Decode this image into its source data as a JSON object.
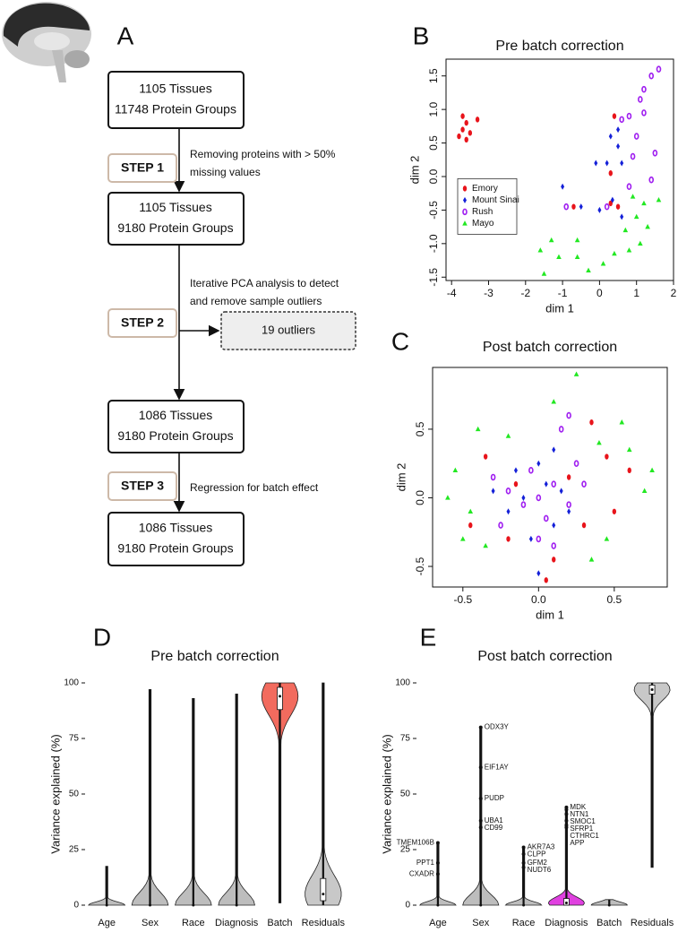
{
  "panel_labels": [
    "A",
    "B",
    "C",
    "D",
    "E"
  ],
  "flowchart": {
    "boxes": [
      [
        "1105 Tissues",
        "11748  Protein Groups"
      ],
      [
        "1105 Tissues",
        "9180 Protein Groups"
      ],
      [
        "1086 Tissues",
        "9180 Protein Groups"
      ],
      [
        "1086 Tissues",
        "9180 Protein Groups"
      ]
    ],
    "steps": [
      "STEP 1",
      "STEP 2",
      "STEP 3"
    ],
    "notes": [
      [
        "Removing proteins with > 50%",
        "missing values"
      ],
      [
        "Iterative PCA analysis to detect",
        "and remove sample outliers"
      ],
      [
        "Regression for batch effect"
      ]
    ],
    "outliers": "19 outliers"
  },
  "chart_data": [
    {
      "type": "scatter",
      "title": "Pre batch correction",
      "x_label": "dim 1",
      "y_label": "dim 2",
      "xlim": [
        -4.15,
        2.0
      ],
      "ylim": [
        -1.55,
        1.75
      ],
      "xticks": [
        -4,
        -3,
        -2,
        -1,
        0,
        1,
        2
      ],
      "yticks": [
        -1.5,
        {
          "value": -1,
          "label": "-1.0"
        },
        -0.5,
        {
          "value": 0,
          "label": "0.0"
        },
        0.5,
        {
          "value": 1,
          "label": "1.0"
        },
        1.5
      ],
      "legend": "center left",
      "series": [
        {
          "name": "Emory",
          "color": "#e8141b",
          "marker": "ellipse",
          "x": [
            -3.7,
            -3.6,
            -3.3,
            -3.8,
            -3.6,
            -3.5,
            -3.7,
            0.4,
            0.3,
            0.3,
            -0.7,
            0.5
          ],
          "values": [
            0.9,
            0.8,
            0.85,
            0.6,
            0.55,
            0.65,
            0.7,
            0.9,
            0.05,
            -0.4,
            -0.45,
            -0.45
          ]
        },
        {
          "name": "Mount Sinai",
          "color": "#1420d8",
          "marker": "diamond",
          "x": [
            0.5,
            0.3,
            0.2,
            0.6,
            -0.1,
            -1.0,
            0.0,
            0.35,
            0.6,
            -0.5,
            0.5
          ],
          "values": [
            0.7,
            0.6,
            0.2,
            0.2,
            0.2,
            -0.15,
            -0.5,
            -0.35,
            -0.6,
            -0.45,
            0.45
          ]
        },
        {
          "name": "Rush",
          "color": "#a020f0",
          "marker": "open-circle",
          "x": [
            1.6,
            1.4,
            1.2,
            1.1,
            0.8,
            1.2,
            0.6,
            1.0,
            1.5,
            0.9,
            -0.9,
            0.8,
            0.2,
            1.4
          ],
          "values": [
            1.6,
            1.5,
            1.3,
            1.15,
            0.9,
            0.95,
            0.85,
            0.6,
            0.35,
            0.3,
            -0.45,
            -0.15,
            -0.45,
            -0.05
          ]
        },
        {
          "name": "Mayo",
          "color": "#22e822",
          "marker": "triangle",
          "x": [
            -1.6,
            -1.3,
            -1.1,
            -1.5,
            -0.6,
            -0.3,
            0.1,
            0.4,
            0.8,
            1.1,
            0.7,
            1.3,
            1.0,
            1.6,
            1.2,
            0.9,
            -0.6
          ],
          "values": [
            -1.1,
            -0.95,
            -1.2,
            -1.45,
            -0.95,
            -1.4,
            -1.3,
            -1.15,
            -1.1,
            -1.0,
            -0.8,
            -0.75,
            -0.6,
            -0.35,
            -0.4,
            -0.3,
            -1.2
          ]
        }
      ]
    },
    {
      "type": "scatter",
      "title": "Post batch correction",
      "x_label": "dim 1",
      "y_label": "dim 2",
      "xlim": [
        -0.7,
        0.85
      ],
      "ylim": [
        -0.65,
        0.95
      ],
      "xticks": [
        -0.5,
        {
          "value": 0,
          "label": "0.0"
        },
        0.5
      ],
      "yticks": [
        -0.5,
        {
          "value": 0,
          "label": "0.0"
        },
        0.5
      ],
      "series": [
        {
          "name": "Emory",
          "color": "#e8141b",
          "marker": "ellipse",
          "x": [
            0.35,
            0.45,
            -0.2,
            0.6,
            -0.35,
            0.1,
            0.5,
            -0.15,
            0.3,
            0.05,
            0.2,
            -0.45
          ],
          "values": [
            0.55,
            0.3,
            -0.3,
            0.2,
            0.3,
            -0.45,
            -0.1,
            0.1,
            -0.2,
            -0.6,
            0.15,
            -0.2
          ]
        },
        {
          "name": "Mount Sinai",
          "color": "#1420d8",
          "marker": "diamond",
          "x": [
            -0.1,
            0.05,
            -0.2,
            0.1,
            0.0,
            0.15,
            -0.05,
            0.2,
            -0.3,
            0.0,
            0.1,
            -0.15
          ],
          "values": [
            0.0,
            0.1,
            -0.1,
            -0.2,
            0.25,
            0.05,
            -0.3,
            -0.1,
            0.05,
            -0.55,
            0.35,
            0.2
          ]
        },
        {
          "name": "Rush",
          "color": "#a020f0",
          "marker": "open-circle",
          "x": [
            0,
            -0.1,
            0.1,
            -0.2,
            0.2,
            0.05,
            -0.05,
            0.25,
            -0.25,
            0.15,
            0.3,
            -0.3,
            0.0,
            0.2,
            0.1
          ],
          "values": [
            0,
            -0.05,
            0.1,
            0.05,
            -0.05,
            -0.15,
            0.2,
            0.25,
            -0.2,
            0.5,
            0.1,
            0.15,
            -0.3,
            0.6,
            -0.35
          ]
        },
        {
          "name": "Mayo",
          "color": "#22e822",
          "marker": "triangle",
          "x": [
            -0.55,
            -0.45,
            0.25,
            0.6,
            0.7,
            -0.35,
            0.45,
            -0.6,
            0.55,
            -0.2,
            0.35,
            0.75,
            -0.4,
            0.1,
            -0.5,
            0.4
          ],
          "values": [
            0.2,
            -0.1,
            0.9,
            0.35,
            0.05,
            -0.35,
            -0.3,
            0.0,
            0.55,
            0.45,
            -0.45,
            0.2,
            0.5,
            0.7,
            -0.3,
            0.4
          ]
        }
      ]
    },
    {
      "type": "violin",
      "title": "Pre batch correction",
      "y_label": "Variance explained (%)",
      "ylim": [
        0,
        100
      ],
      "yticks": [
        0,
        25,
        50,
        75,
        100
      ],
      "categories": [
        "Age",
        "Sex",
        "Race",
        "Diagnosis",
        "Batch",
        "Residuals"
      ],
      "colors": [
        "#bdbdbd",
        "#bdbdbd",
        "#bdbdbd",
        "#bdbdbd",
        "#f26b5e",
        "#c8c8c8"
      ],
      "min": [
        0,
        0,
        0,
        0,
        1,
        0
      ],
      "q1": [
        0,
        0,
        0,
        0,
        88,
        2
      ],
      "median": [
        0,
        0,
        0,
        0,
        94,
        5
      ],
      "q3": [
        0,
        0,
        0,
        0,
        98,
        12
      ],
      "max": [
        17.5,
        97,
        93,
        95,
        100,
        100
      ]
    },
    {
      "type": "violin",
      "title": "Post batch correction",
      "y_label": "Variance explained (%)",
      "ylim": [
        0,
        100
      ],
      "yticks": [
        0,
        25,
        50,
        75,
        100
      ],
      "categories": [
        "Age",
        "Sex",
        "Race",
        "Diagnosis",
        "Batch",
        "Residuals"
      ],
      "colors": [
        "#bdbdbd",
        "#bdbdbd",
        "#bdbdbd",
        "#e040e0",
        "#bdbdbd",
        "#c8c8c8"
      ],
      "min": [
        0,
        0,
        0,
        0,
        0,
        17
      ],
      "q1": [
        0,
        0,
        0,
        0,
        0,
        95
      ],
      "median": [
        0,
        0,
        0,
        1,
        0,
        97
      ],
      "q3": [
        0,
        0,
        0,
        3,
        0,
        99
      ],
      "max": [
        28,
        80,
        26,
        44,
        2.5,
        100
      ],
      "annotations": [
        [
          {
            "label": "TMEM106B",
            "value": 28
          },
          {
            "label": "PPT1",
            "value": 19
          },
          {
            "label": "CXADR",
            "value": 14
          }
        ],
        [
          {
            "label": "ODX3Y",
            "value": 80
          },
          {
            "label": "EIF1AY",
            "value": 62
          },
          {
            "label": "PUDP",
            "value": 48
          },
          {
            "label": "UBA1",
            "value": 38
          },
          {
            "label": "CD99",
            "value": 35
          }
        ],
        [
          {
            "label": "AKR7A3",
            "value": 26
          },
          {
            "label": "CLPP",
            "value": 23
          },
          {
            "label": "GFM2",
            "value": 19
          },
          {
            "label": "NUDT6",
            "value": 17
          }
        ],
        [
          {
            "label": "MDK",
            "value": 44
          },
          {
            "label": "NTN1",
            "value": 43
          },
          {
            "label": "SMOC1",
            "value": 41
          },
          {
            "label": "SFRP1",
            "value": 38
          },
          {
            "label": "CTHRC1",
            "value": 36
          },
          {
            "label": "APP",
            "value": 35
          }
        ],
        [],
        []
      ]
    }
  ]
}
